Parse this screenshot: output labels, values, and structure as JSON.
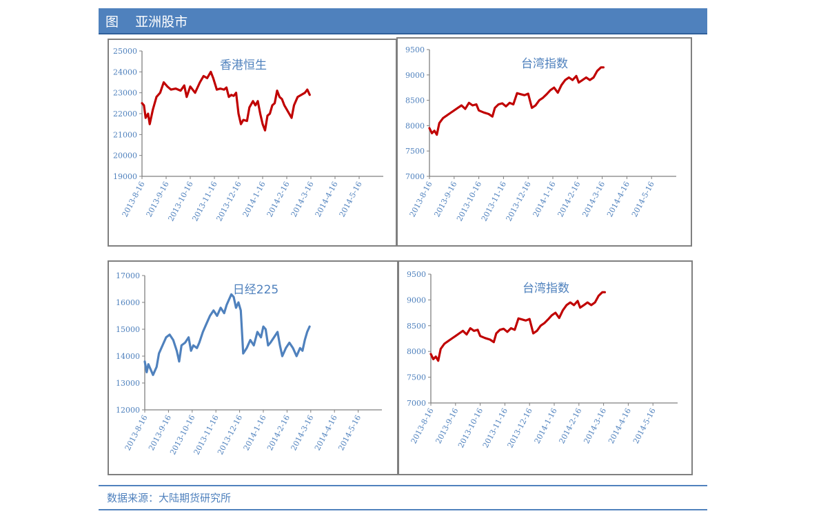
{
  "header": {
    "title": "图    亚洲股市"
  },
  "footer": {
    "source": "数据来源：大陆期货研究所"
  },
  "colors": {
    "header_bg": "#4f81bd",
    "tick_text": "#4f81bd",
    "axis": "#7f7f7f",
    "red_series": "#c00000",
    "blue_series": "#4f81bd"
  },
  "chart_data": [
    {
      "type": "line",
      "title": "香港恒生",
      "ylim": [
        19000,
        25000
      ],
      "yticks": [
        "25000",
        "24000",
        "23000",
        "22000",
        "21000",
        "20000",
        "19000"
      ],
      "xticks": [
        "2013-8-16",
        "2013-9-16",
        "2013-10-16",
        "2013-11-16",
        "2013-12-16",
        "2014-1-16",
        "2014-2-16",
        "2014-3-16",
        "2014-4-16",
        "2014-5-16"
      ],
      "x_range": [
        "2013-8-16",
        "2014-6-16"
      ],
      "series": [
        {
          "color": "#c00000",
          "values": [
            [
              0,
              22500
            ],
            [
              0.08,
              22400
            ],
            [
              0.15,
              21800
            ],
            [
              0.25,
              22000
            ],
            [
              0.32,
              21500
            ],
            [
              0.45,
              22200
            ],
            [
              0.6,
              22800
            ],
            [
              0.75,
              23000
            ],
            [
              0.9,
              23500
            ],
            [
              1.05,
              23300
            ],
            [
              1.2,
              23150
            ],
            [
              1.4,
              23200
            ],
            [
              1.6,
              23100
            ],
            [
              1.75,
              23350
            ],
            [
              1.85,
              22800
            ],
            [
              2.0,
              23300
            ],
            [
              2.2,
              23000
            ],
            [
              2.4,
              23500
            ],
            [
              2.55,
              23800
            ],
            [
              2.7,
              23700
            ],
            [
              2.85,
              24000
            ],
            [
              2.95,
              23700
            ],
            [
              3.1,
              23150
            ],
            [
              3.25,
              23200
            ],
            [
              3.4,
              23150
            ],
            [
              3.5,
              23250
            ],
            [
              3.6,
              22800
            ],
            [
              3.7,
              22900
            ],
            [
              3.8,
              22850
            ],
            [
              3.9,
              23000
            ],
            [
              4.0,
              22000
            ],
            [
              4.1,
              21500
            ],
            [
              4.2,
              21700
            ],
            [
              4.35,
              21650
            ],
            [
              4.45,
              22300
            ],
            [
              4.6,
              22600
            ],
            [
              4.7,
              22400
            ],
            [
              4.8,
              22600
            ],
            [
              4.9,
              22000
            ],
            [
              5.0,
              21500
            ],
            [
              5.1,
              21200
            ],
            [
              5.2,
              21900
            ],
            [
              5.3,
              22000
            ],
            [
              5.4,
              22400
            ],
            [
              5.5,
              22500
            ],
            [
              5.6,
              23100
            ],
            [
              5.7,
              22800
            ],
            [
              5.8,
              22700
            ],
            [
              5.9,
              22400
            ],
            [
              6.0,
              22200
            ],
            [
              6.1,
              22000
            ],
            [
              6.2,
              21800
            ],
            [
              6.3,
              22400
            ],
            [
              6.45,
              22800
            ],
            [
              6.6,
              22900
            ],
            [
              6.75,
              23000
            ],
            [
              6.85,
              23150
            ],
            [
              6.95,
              22900
            ]
          ]
        }
      ]
    },
    {
      "type": "line",
      "title": "台湾指数",
      "ylim": [
        7000,
        9500
      ],
      "yticks": [
        "9500",
        "9000",
        "8500",
        "8000",
        "7500",
        "7000"
      ],
      "xticks": [
        "2013-8-16",
        "2013-9-16",
        "2013-10-16",
        "2013-11-16",
        "2013-12-16",
        "2014-1-16",
        "2014-2-16",
        "2014-3-16",
        "2014-4-16",
        "2014-5-16"
      ],
      "x_range": [
        "2013-8-16",
        "2014-6-16"
      ],
      "series": [
        {
          "color": "#c00000",
          "values": [
            [
              0,
              7950
            ],
            [
              0.1,
              7850
            ],
            [
              0.2,
              7900
            ],
            [
              0.3,
              7820
            ],
            [
              0.4,
              8050
            ],
            [
              0.55,
              8150
            ],
            [
              0.7,
              8200
            ],
            [
              0.85,
              8250
            ],
            [
              1.0,
              8300
            ],
            [
              1.15,
              8350
            ],
            [
              1.3,
              8400
            ],
            [
              1.45,
              8330
            ],
            [
              1.6,
              8450
            ],
            [
              1.75,
              8400
            ],
            [
              1.9,
              8420
            ],
            [
              2.0,
              8300
            ],
            [
              2.2,
              8260
            ],
            [
              2.4,
              8230
            ],
            [
              2.55,
              8180
            ],
            [
              2.65,
              8350
            ],
            [
              2.8,
              8420
            ],
            [
              2.95,
              8440
            ],
            [
              3.1,
              8380
            ],
            [
              3.25,
              8450
            ],
            [
              3.4,
              8420
            ],
            [
              3.55,
              8640
            ],
            [
              3.7,
              8620
            ],
            [
              3.85,
              8600
            ],
            [
              4.0,
              8630
            ],
            [
              4.15,
              8350
            ],
            [
              4.3,
              8400
            ],
            [
              4.45,
              8500
            ],
            [
              4.6,
              8550
            ],
            [
              4.75,
              8620
            ],
            [
              4.9,
              8700
            ],
            [
              5.05,
              8750
            ],
            [
              5.2,
              8650
            ],
            [
              5.35,
              8800
            ],
            [
              5.5,
              8900
            ],
            [
              5.65,
              8950
            ],
            [
              5.8,
              8900
            ],
            [
              5.95,
              8980
            ],
            [
              6.05,
              8850
            ],
            [
              6.2,
              8900
            ],
            [
              6.35,
              8950
            ],
            [
              6.5,
              8900
            ],
            [
              6.65,
              8950
            ],
            [
              6.8,
              9080
            ],
            [
              6.95,
              9150
            ],
            [
              7.05,
              9150
            ]
          ]
        }
      ]
    },
    {
      "type": "line",
      "title": "日经225",
      "ylim": [
        12000,
        17000
      ],
      "yticks": [
        "17000",
        "16000",
        "15000",
        "14000",
        "13000",
        "12000"
      ],
      "xticks": [
        "2013-8-16",
        "2013-9-16",
        "2013-10-16",
        "2013-11-16",
        "2013-12-16",
        "2014-1-16",
        "2014-2-16",
        "2014-3-16",
        "2014-4-16",
        "2014-5-16"
      ],
      "x_range": [
        "2013-8-16",
        "2014-6-16"
      ],
      "series": [
        {
          "color": "#4f81bd",
          "values": [
            [
              0,
              13800
            ],
            [
              0.08,
              13400
            ],
            [
              0.15,
              13700
            ],
            [
              0.25,
              13500
            ],
            [
              0.35,
              13300
            ],
            [
              0.5,
              13600
            ],
            [
              0.6,
              14100
            ],
            [
              0.75,
              14400
            ],
            [
              0.9,
              14700
            ],
            [
              1.05,
              14800
            ],
            [
              1.2,
              14600
            ],
            [
              1.35,
              14200
            ],
            [
              1.45,
              13800
            ],
            [
              1.55,
              14400
            ],
            [
              1.7,
              14500
            ],
            [
              1.85,
              14700
            ],
            [
              1.95,
              14200
            ],
            [
              2.05,
              14400
            ],
            [
              2.2,
              14300
            ],
            [
              2.3,
              14500
            ],
            [
              2.45,
              14900
            ],
            [
              2.6,
              15200
            ],
            [
              2.75,
              15500
            ],
            [
              2.9,
              15700
            ],
            [
              3.05,
              15500
            ],
            [
              3.2,
              15800
            ],
            [
              3.35,
              15600
            ],
            [
              3.45,
              15900
            ],
            [
              3.55,
              16100
            ],
            [
              3.65,
              16300
            ],
            [
              3.75,
              16200
            ],
            [
              3.85,
              15800
            ],
            [
              3.95,
              16000
            ],
            [
              4.05,
              15700
            ],
            [
              4.15,
              14100
            ],
            [
              4.3,
              14300
            ],
            [
              4.45,
              14600
            ],
            [
              4.6,
              14400
            ],
            [
              4.75,
              14900
            ],
            [
              4.9,
              14700
            ],
            [
              5.0,
              15100
            ],
            [
              5.1,
              15000
            ],
            [
              5.2,
              14400
            ],
            [
              5.3,
              14500
            ],
            [
              5.45,
              14700
            ],
            [
              5.6,
              14900
            ],
            [
              5.7,
              14400
            ],
            [
              5.8,
              14000
            ],
            [
              5.95,
              14300
            ],
            [
              6.1,
              14500
            ],
            [
              6.25,
              14300
            ],
            [
              6.4,
              14000
            ],
            [
              6.55,
              14300
            ],
            [
              6.65,
              14200
            ],
            [
              6.75,
              14600
            ],
            [
              6.85,
              14900
            ],
            [
              6.95,
              15100
            ]
          ]
        }
      ]
    },
    {
      "type": "line",
      "title": "台湾指数",
      "ylim": [
        7000,
        9500
      ],
      "yticks": [
        "9500",
        "9000",
        "8500",
        "8000",
        "7500",
        "7000"
      ],
      "xticks": [
        "2013-8-16",
        "2013-9-16",
        "2013-10-16",
        "2013-11-16",
        "2013-12-16",
        "2014-1-16",
        "2014-2-16",
        "2014-3-16",
        "2014-4-16",
        "2014-5-16"
      ],
      "x_range": [
        "2013-8-16",
        "2014-6-16"
      ],
      "series": [
        {
          "color": "#c00000",
          "values": [
            [
              0,
              7950
            ],
            [
              0.1,
              7850
            ],
            [
              0.2,
              7900
            ],
            [
              0.3,
              7820
            ],
            [
              0.4,
              8050
            ],
            [
              0.55,
              8150
            ],
            [
              0.7,
              8200
            ],
            [
              0.85,
              8250
            ],
            [
              1.0,
              8300
            ],
            [
              1.15,
              8350
            ],
            [
              1.3,
              8400
            ],
            [
              1.45,
              8330
            ],
            [
              1.6,
              8450
            ],
            [
              1.75,
              8400
            ],
            [
              1.9,
              8420
            ],
            [
              2.0,
              8300
            ],
            [
              2.2,
              8260
            ],
            [
              2.4,
              8230
            ],
            [
              2.55,
              8180
            ],
            [
              2.65,
              8350
            ],
            [
              2.8,
              8420
            ],
            [
              2.95,
              8440
            ],
            [
              3.1,
              8380
            ],
            [
              3.25,
              8450
            ],
            [
              3.4,
              8420
            ],
            [
              3.55,
              8640
            ],
            [
              3.7,
              8620
            ],
            [
              3.85,
              8600
            ],
            [
              4.0,
              8630
            ],
            [
              4.15,
              8350
            ],
            [
              4.3,
              8400
            ],
            [
              4.45,
              8500
            ],
            [
              4.6,
              8550
            ],
            [
              4.75,
              8620
            ],
            [
              4.9,
              8700
            ],
            [
              5.05,
              8750
            ],
            [
              5.2,
              8650
            ],
            [
              5.35,
              8800
            ],
            [
              5.5,
              8900
            ],
            [
              5.65,
              8950
            ],
            [
              5.8,
              8900
            ],
            [
              5.95,
              8980
            ],
            [
              6.05,
              8850
            ],
            [
              6.2,
              8900
            ],
            [
              6.35,
              8950
            ],
            [
              6.5,
              8900
            ],
            [
              6.65,
              8950
            ],
            [
              6.8,
              9080
            ],
            [
              6.95,
              9150
            ],
            [
              7.05,
              9150
            ]
          ]
        }
      ]
    }
  ]
}
